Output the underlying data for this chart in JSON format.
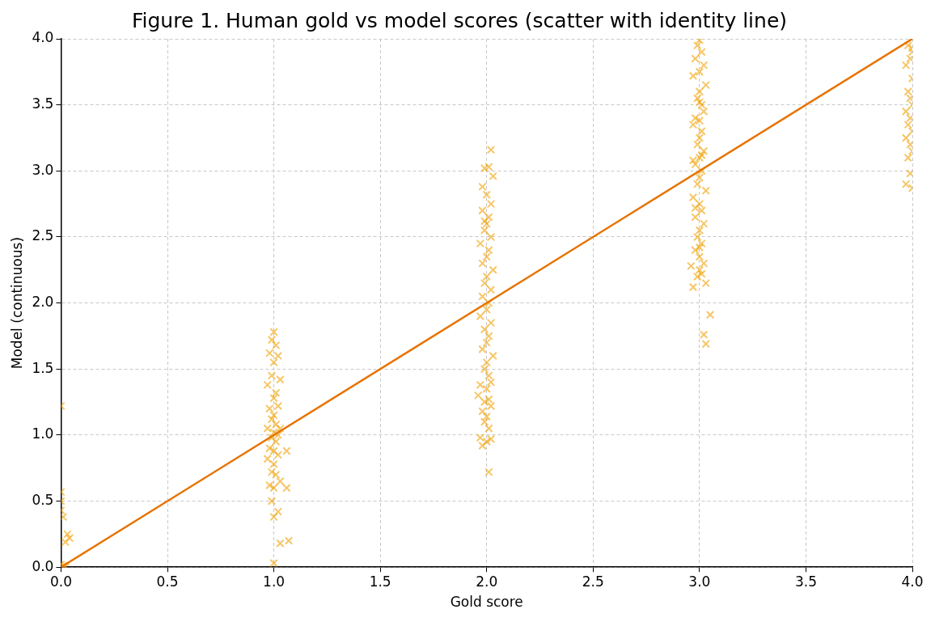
{
  "chart_data": {
    "type": "scatter",
    "title": "Figure 1. Human gold vs model scores (scatter with identity line)",
    "xlabel": "Gold score",
    "ylabel": "Model (continuous)",
    "xlim": [
      0,
      4
    ],
    "xticks": [
      {
        "value": 0,
        "label": "0.0"
      },
      {
        "value": 0.5,
        "label": "0.5"
      },
      {
        "value": 1,
        "label": "1.0"
      },
      {
        "value": 1.5,
        "label": "1.5"
      },
      {
        "value": 2,
        "label": "2.0"
      },
      {
        "value": 2.5,
        "label": "2.5"
      },
      {
        "value": 3,
        "label": "3.0"
      },
      {
        "value": 3.5,
        "label": "3.5"
      },
      {
        "value": 4,
        "label": "4.0"
      }
    ],
    "ylim": [
      0,
      4
    ],
    "yticks": [
      {
        "value": 0,
        "label": "0.0"
      },
      {
        "value": 0.5,
        "label": "0.5"
      },
      {
        "value": 1,
        "label": "1.0"
      },
      {
        "value": 1.5,
        "label": "1.5"
      },
      {
        "value": 2,
        "label": "2.0"
      },
      {
        "value": 2.5,
        "label": "2.5"
      },
      {
        "value": 3,
        "label": "3.0"
      },
      {
        "value": 3.5,
        "label": "3.5"
      },
      {
        "value": 4,
        "label": "4.0"
      }
    ],
    "grid": true,
    "series": [
      {
        "type": "scatter",
        "marker": "cross",
        "color": "#f0a000",
        "x": [
          0,
          0,
          0,
          0,
          0.01,
          0.03,
          0.04,
          0.02,
          0,
          0.01,
          0.02
        ],
        "values": [
          1.22,
          0.57,
          0.5,
          0.43,
          0.38,
          0.25,
          0.22,
          0.19,
          0.02,
          0.01,
          0
        ]
      },
      {
        "type": "scatter",
        "marker": "cross",
        "color": "#f0a000",
        "x": [
          1,
          0.99,
          1.01,
          0.98,
          1.02,
          1,
          0.99,
          1.03,
          0.97,
          1.01,
          1,
          1.02,
          0.98,
          1,
          0.99,
          1.01,
          1.03,
          0.97,
          1,
          1.02,
          0.99,
          1.01,
          0.98,
          1,
          1.02,
          0.97,
          1.06,
          1,
          0.99,
          1.01,
          1.03,
          0.98,
          1,
          1.06,
          0.99,
          1.02,
          1,
          1.07,
          1.03,
          1
        ],
        "values": [
          1.78,
          1.72,
          1.68,
          1.62,
          1.6,
          1.55,
          1.45,
          1.42,
          1.38,
          1.32,
          1.28,
          1.22,
          1.2,
          1.15,
          1.12,
          1.08,
          1.05,
          1.05,
          1.02,
          1,
          0.98,
          0.95,
          0.9,
          0.88,
          0.85,
          0.82,
          0.88,
          0.78,
          0.72,
          0.7,
          0.65,
          0.62,
          0.6,
          0.6,
          0.5,
          0.42,
          0.38,
          0.2,
          0.18,
          0.03
        ]
      },
      {
        "type": "scatter",
        "marker": "cross",
        "color": "#f0a000",
        "x": [
          2.02,
          2.01,
          1.99,
          2.03,
          1.98,
          2,
          2.02,
          1.98,
          2.01,
          2,
          1.99,
          2.02,
          1.97,
          2.01,
          2,
          1.98,
          2.03,
          2,
          1.99,
          2.02,
          1.98,
          2.01,
          2,
          1.97,
          2.02,
          1.99,
          2.01,
          2,
          1.98,
          2.03,
          2,
          1.99,
          2.01,
          2.02,
          1.97,
          2,
          1.96,
          2.01,
          1.99,
          2.02,
          1.98,
          2,
          1.99,
          2.01,
          1.97,
          2.02,
          2,
          1.98,
          2.01,
          1.99
        ],
        "values": [
          3.16,
          3.03,
          3.02,
          2.96,
          2.88,
          2.82,
          2.75,
          2.7,
          2.65,
          2.6,
          2.55,
          2.5,
          2.45,
          2.4,
          2.35,
          2.3,
          2.25,
          2.2,
          2.15,
          2.1,
          2.05,
          2,
          1.95,
          1.9,
          1.85,
          1.8,
          1.75,
          1.7,
          1.65,
          1.6,
          1.55,
          1.5,
          1.45,
          1.4,
          1.38,
          1.35,
          1.3,
          1.27,
          1.25,
          1.22,
          1.18,
          1.14,
          1.1,
          1.05,
          0.98,
          0.97,
          0.95,
          0.92,
          0.72,
          2.62
        ]
      },
      {
        "type": "scatter",
        "marker": "cross",
        "color": "#f0a000",
        "x": [
          3,
          2.99,
          3.01,
          2.98,
          3.02,
          3,
          2.97,
          3.03,
          3,
          2.99,
          3.01,
          3.02,
          2.98,
          3,
          2.97,
          3.01,
          3,
          2.99,
          3.02,
          3,
          2.98,
          3.01,
          3,
          2.99,
          3.03,
          2.97,
          3,
          3.01,
          2.98,
          3.02,
          3,
          2.99,
          3.01,
          2.98,
          3,
          3.02,
          2.96,
          3,
          3.01,
          2.99,
          3.03,
          2.97,
          3,
          3.01,
          2.98,
          3,
          3.02,
          3.05,
          3.03,
          2.97
        ],
        "values": [
          3.99,
          3.95,
          3.9,
          3.85,
          3.8,
          3.75,
          3.72,
          3.65,
          3.6,
          3.55,
          3.5,
          3.45,
          3.4,
          3.38,
          3.35,
          3.3,
          3.25,
          3.2,
          3.15,
          3.1,
          3.05,
          3,
          2.95,
          2.9,
          2.85,
          2.8,
          2.75,
          2.7,
          2.65,
          2.6,
          2.55,
          2.5,
          2.45,
          2.4,
          2.35,
          2.3,
          2.28,
          2.25,
          2.22,
          2.2,
          2.15,
          2.12,
          3.52,
          3.12,
          2.72,
          2.42,
          1.76,
          1.91,
          1.69,
          3.08
        ]
      },
      {
        "type": "scatter",
        "marker": "cross",
        "color": "#f0a000",
        "x": [
          4,
          3.98,
          4,
          3.99,
          3.97,
          4,
          3.98,
          3.99,
          4,
          3.97,
          3.99,
          3.98,
          4,
          3.97,
          3.99,
          4,
          3.98,
          3.99,
          3.97,
          4
        ],
        "values": [
          3.93,
          3.95,
          3.9,
          3.85,
          3.8,
          3.7,
          3.6,
          3.55,
          3.5,
          3.45,
          3.4,
          3.35,
          3.3,
          3.25,
          3.2,
          3.15,
          3.1,
          2.98,
          2.9,
          2.87
        ]
      },
      {
        "type": "line",
        "color": "#e67300",
        "x": [
          0,
          4
        ],
        "values": [
          0,
          4
        ]
      }
    ]
  }
}
